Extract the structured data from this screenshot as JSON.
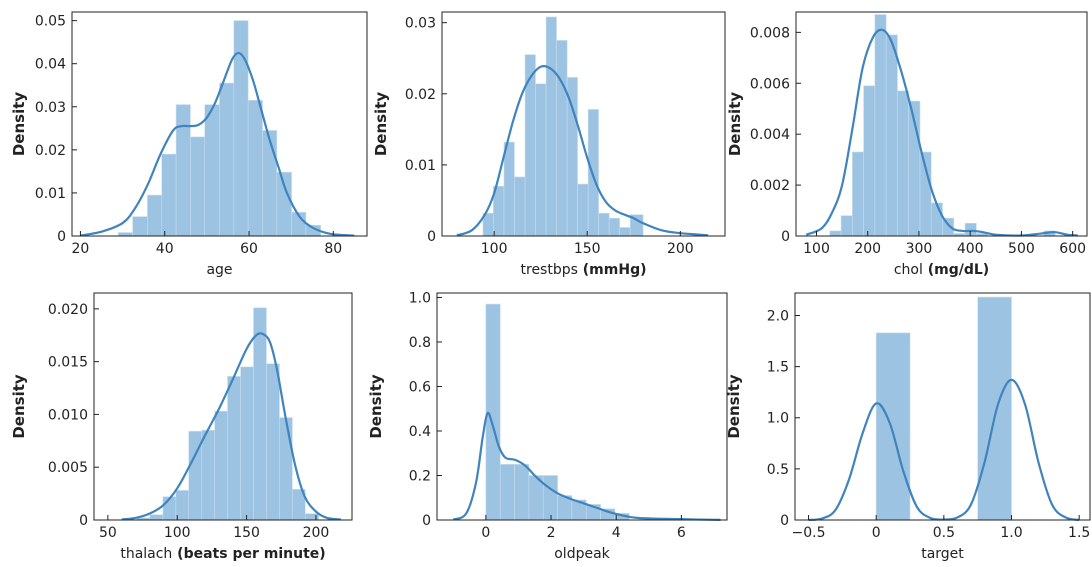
{
  "style": {
    "bar_color": "#9dc3e2",
    "bar_edge": "#c6dcee",
    "kde_color": "#3f84bd",
    "axis_color": "#222222"
  },
  "chart_data": [
    {
      "type": "histogram+kde",
      "xlabel": "age",
      "xlabel_unit": "",
      "ylabel": "Density",
      "xlim": [
        18,
        88
      ],
      "ylim": [
        0,
        0.052
      ],
      "xticks": [
        20,
        40,
        60,
        80
      ],
      "yticks": [
        0,
        0.01,
        0.02,
        0.03,
        0.04,
        0.05
      ],
      "ytick_labels": [
        "0",
        "0.01",
        "0.02",
        "0.03",
        "0.04",
        "0.05"
      ],
      "bins": [
        {
          "x0": 29,
          "x1": 32.4,
          "y": 0.0008
        },
        {
          "x0": 32.4,
          "x1": 35.9,
          "y": 0.0045
        },
        {
          "x0": 35.9,
          "x1": 39.3,
          "y": 0.0095
        },
        {
          "x0": 39.3,
          "x1": 42.7,
          "y": 0.019
        },
        {
          "x0": 42.7,
          "x1": 46.1,
          "y": 0.0305
        },
        {
          "x0": 46.1,
          "x1": 49.5,
          "y": 0.023
        },
        {
          "x0": 49.5,
          "x1": 53.0,
          "y": 0.0305
        },
        {
          "x0": 53.0,
          "x1": 56.4,
          "y": 0.0355
        },
        {
          "x0": 56.4,
          "x1": 59.8,
          "y": 0.05
        },
        {
          "x0": 59.8,
          "x1": 63.2,
          "y": 0.0315
        },
        {
          "x0": 63.2,
          "x1": 66.6,
          "y": 0.0245
        },
        {
          "x0": 66.6,
          "x1": 70.1,
          "y": 0.0148
        },
        {
          "x0": 70.1,
          "x1": 73.5,
          "y": 0.0055
        },
        {
          "x0": 73.5,
          "x1": 77,
          "y": 0.0025
        }
      ],
      "kde": [
        [
          20,
          0.0001
        ],
        [
          25,
          0.001
        ],
        [
          30,
          0.003
        ],
        [
          33,
          0.0065
        ],
        [
          36,
          0.012
        ],
        [
          39,
          0.019
        ],
        [
          42,
          0.0245
        ],
        [
          44,
          0.0255
        ],
        [
          46,
          0.0255
        ],
        [
          48,
          0.0258
        ],
        [
          50,
          0.0275
        ],
        [
          52,
          0.031
        ],
        [
          54,
          0.036
        ],
        [
          56,
          0.041
        ],
        [
          57.5,
          0.0425
        ],
        [
          59,
          0.041
        ],
        [
          61,
          0.036
        ],
        [
          63,
          0.029
        ],
        [
          65,
          0.022
        ],
        [
          67,
          0.016
        ],
        [
          69,
          0.01
        ],
        [
          72,
          0.0045
        ],
        [
          75,
          0.002
        ],
        [
          78,
          0.0008
        ],
        [
          81,
          0.0003
        ],
        [
          85,
          0.0001
        ]
      ]
    },
    {
      "type": "histogram+kde",
      "xlabel": "trestbps",
      "xlabel_unit": "(mmHg)",
      "ylabel": "Density",
      "xlim": [
        72,
        224
      ],
      "ylim": [
        0,
        0.0315
      ],
      "xticks": [
        100,
        150,
        200
      ],
      "yticks": [
        0,
        0.01,
        0.02,
        0.03
      ],
      "ytick_labels": [
        "0",
        "0.01",
        "0.02",
        "0.03"
      ],
      "bins": [
        {
          "x0": 94,
          "x1": 99.6,
          "y": 0.0032
        },
        {
          "x0": 99.6,
          "x1": 105.3,
          "y": 0.007
        },
        {
          "x0": 105.3,
          "x1": 110.9,
          "y": 0.0132
        },
        {
          "x0": 110.9,
          "x1": 116.6,
          "y": 0.0083
        },
        {
          "x0": 116.6,
          "x1": 122.2,
          "y": 0.0255
        },
        {
          "x0": 122.2,
          "x1": 127.9,
          "y": 0.0214
        },
        {
          "x0": 127.9,
          "x1": 133.5,
          "y": 0.0308
        },
        {
          "x0": 133.5,
          "x1": 139.2,
          "y": 0.0275
        },
        {
          "x0": 139.2,
          "x1": 144.8,
          "y": 0.0223
        },
        {
          "x0": 144.8,
          "x1": 150.5,
          "y": 0.0073
        },
        {
          "x0": 150.5,
          "x1": 156.1,
          "y": 0.0178
        },
        {
          "x0": 156.1,
          "x1": 161.8,
          "y": 0.0032
        },
        {
          "x0": 161.8,
          "x1": 167.4,
          "y": 0.0025
        },
        {
          "x0": 167.4,
          "x1": 173.1,
          "y": 0.0012
        },
        {
          "x0": 173.1,
          "x1": 180,
          "y": 0.003
        }
      ],
      "kde": [
        [
          80,
          0.0001
        ],
        [
          88,
          0.0008
        ],
        [
          95,
          0.003
        ],
        [
          100,
          0.006
        ],
        [
          105,
          0.011
        ],
        [
          110,
          0.016
        ],
        [
          115,
          0.02
        ],
        [
          120,
          0.0225
        ],
        [
          125,
          0.0238
        ],
        [
          130,
          0.0236
        ],
        [
          135,
          0.0222
        ],
        [
          140,
          0.0195
        ],
        [
          145,
          0.0155
        ],
        [
          150,
          0.011
        ],
        [
          155,
          0.0072
        ],
        [
          160,
          0.0048
        ],
        [
          165,
          0.0036
        ],
        [
          170,
          0.003
        ],
        [
          175,
          0.0025
        ],
        [
          180,
          0.0018
        ],
        [
          190,
          0.0008
        ],
        [
          200,
          0.0004
        ],
        [
          210,
          0.0002
        ],
        [
          215,
          0.0001
        ]
      ]
    },
    {
      "type": "histogram+kde",
      "xlabel": "chol",
      "xlabel_unit": "(mg/dL)",
      "ylabel": "Density",
      "xlim": [
        60,
        628
      ],
      "ylim": [
        0,
        0.0088
      ],
      "xticks": [
        100,
        200,
        300,
        400,
        500,
        600
      ],
      "yticks": [
        0,
        0.002,
        0.004,
        0.006,
        0.008
      ],
      "ytick_labels": [
        "0",
        "0.002",
        "0.004",
        "0.006",
        "0.008"
      ],
      "bins": [
        {
          "x0": 126,
          "x1": 148,
          "y": 0.0002
        },
        {
          "x0": 148,
          "x1": 170,
          "y": 0.0008
        },
        {
          "x0": 170,
          "x1": 192,
          "y": 0.0033
        },
        {
          "x0": 192,
          "x1": 214,
          "y": 0.0059
        },
        {
          "x0": 214,
          "x1": 236,
          "y": 0.0087
        },
        {
          "x0": 236,
          "x1": 258,
          "y": 0.0079
        },
        {
          "x0": 258,
          "x1": 280,
          "y": 0.0057
        },
        {
          "x0": 280,
          "x1": 302,
          "y": 0.0053
        },
        {
          "x0": 302,
          "x1": 324,
          "y": 0.0033
        },
        {
          "x0": 324,
          "x1": 346,
          "y": 0.0013
        },
        {
          "x0": 346,
          "x1": 368,
          "y": 0.0007
        },
        {
          "x0": 368,
          "x1": 390,
          "y": 0.0001
        },
        {
          "x0": 390,
          "x1": 412,
          "y": 0.0005
        },
        {
          "x0": 412,
          "x1": 434,
          "y": 0.0001
        },
        {
          "x0": 544,
          "x1": 566,
          "y": 0.0002
        }
      ],
      "kde": [
        [
          80,
          5e-05
        ],
        [
          110,
          0.0003
        ],
        [
          130,
          0.0009
        ],
        [
          150,
          0.002
        ],
        [
          170,
          0.0042
        ],
        [
          190,
          0.0066
        ],
        [
          210,
          0.0078
        ],
        [
          228,
          0.0081
        ],
        [
          245,
          0.0077
        ],
        [
          265,
          0.0065
        ],
        [
          285,
          0.005
        ],
        [
          305,
          0.0033
        ],
        [
          325,
          0.0018
        ],
        [
          345,
          0.0008
        ],
        [
          365,
          0.0003
        ],
        [
          385,
          0.0002
        ],
        [
          405,
          0.0002
        ],
        [
          425,
          0.00015
        ],
        [
          450,
          5e-05
        ],
        [
          500,
          2e-05
        ],
        [
          540,
          0.0001
        ],
        [
          565,
          0.00015
        ],
        [
          590,
          5e-05
        ],
        [
          610,
          2e-05
        ]
      ]
    },
    {
      "type": "histogram+kde",
      "xlabel": "thalach",
      "xlabel_unit": "(beats per minute)",
      "ylabel": "Density",
      "xlim": [
        40,
        226
      ],
      "ylim": [
        0,
        0.0215
      ],
      "xticks": [
        50,
        100,
        150,
        200
      ],
      "yticks": [
        0,
        0.005,
        0.01,
        0.015,
        0.02
      ],
      "ytick_labels": [
        "0",
        "0.005",
        "0.010",
        "0.015",
        "0.020"
      ],
      "bins": [
        {
          "x0": 71,
          "x1": 80.3,
          "y": 0.0002
        },
        {
          "x0": 80.3,
          "x1": 89.7,
          "y": 0.0005
        },
        {
          "x0": 89.7,
          "x1": 99,
          "y": 0.0022
        },
        {
          "x0": 99,
          "x1": 108.3,
          "y": 0.0028
        },
        {
          "x0": 108.3,
          "x1": 117.7,
          "y": 0.0084
        },
        {
          "x0": 117.7,
          "x1": 127,
          "y": 0.0085
        },
        {
          "x0": 127,
          "x1": 136.3,
          "y": 0.0103
        },
        {
          "x0": 136.3,
          "x1": 145.7,
          "y": 0.0136
        },
        {
          "x0": 145.7,
          "x1": 155,
          "y": 0.0145
        },
        {
          "x0": 155,
          "x1": 164.3,
          "y": 0.0201
        },
        {
          "x0": 164.3,
          "x1": 173.7,
          "y": 0.0148
        },
        {
          "x0": 173.7,
          "x1": 183,
          "y": 0.0097
        },
        {
          "x0": 183,
          "x1": 192.3,
          "y": 0.0029
        },
        {
          "x0": 192.3,
          "x1": 202,
          "y": 0.0006
        }
      ],
      "kde": [
        [
          60,
          5e-05
        ],
        [
          70,
          0.0002
        ],
        [
          80,
          0.0006
        ],
        [
          90,
          0.0014
        ],
        [
          100,
          0.003
        ],
        [
          110,
          0.0054
        ],
        [
          120,
          0.008
        ],
        [
          130,
          0.0105
        ],
        [
          140,
          0.0133
        ],
        [
          150,
          0.0162
        ],
        [
          157,
          0.0175
        ],
        [
          162,
          0.0176
        ],
        [
          167,
          0.0168
        ],
        [
          172,
          0.0142
        ],
        [
          178,
          0.0098
        ],
        [
          185,
          0.0052
        ],
        [
          192,
          0.0022
        ],
        [
          200,
          0.0008
        ],
        [
          208,
          0.0002
        ],
        [
          218,
          5e-05
        ]
      ]
    },
    {
      "type": "histogram+kde",
      "xlabel": "oldpeak",
      "xlabel_unit": "",
      "ylabel": "Density",
      "xlim": [
        -1.5,
        7.4
      ],
      "ylim": [
        0,
        1.02
      ],
      "xticks": [
        0,
        2,
        4,
        6
      ],
      "yticks": [
        0,
        0.2,
        0.4,
        0.6,
        0.8,
        1.0
      ],
      "ytick_labels": [
        "0",
        "0.2",
        "0.4",
        "0.6",
        "0.8",
        "1.0"
      ],
      "bins": [
        {
          "x0": 0,
          "x1": 0.44,
          "y": 0.97
        },
        {
          "x0": 0.44,
          "x1": 0.88,
          "y": 0.25
        },
        {
          "x0": 0.88,
          "x1": 1.32,
          "y": 0.25
        },
        {
          "x0": 1.32,
          "x1": 1.76,
          "y": 0.2
        },
        {
          "x0": 1.76,
          "x1": 2.2,
          "y": 0.2
        },
        {
          "x0": 2.2,
          "x1": 2.64,
          "y": 0.11
        },
        {
          "x0": 2.64,
          "x1": 3.08,
          "y": 0.09
        },
        {
          "x0": 3.08,
          "x1": 3.52,
          "y": 0.07
        },
        {
          "x0": 3.52,
          "x1": 3.96,
          "y": 0.05
        },
        {
          "x0": 3.96,
          "x1": 4.4,
          "y": 0.03
        }
      ],
      "kde": [
        [
          -1,
          0.002
        ],
        [
          -0.6,
          0.03
        ],
        [
          -0.3,
          0.17
        ],
        [
          -0.1,
          0.37
        ],
        [
          0.05,
          0.48
        ],
        [
          0.2,
          0.43
        ],
        [
          0.4,
          0.33
        ],
        [
          0.6,
          0.28
        ],
        [
          0.9,
          0.27
        ],
        [
          1.2,
          0.245
        ],
        [
          1.5,
          0.2
        ],
        [
          1.8,
          0.16
        ],
        [
          2.2,
          0.12
        ],
        [
          2.6,
          0.095
        ],
        [
          3,
          0.075
        ],
        [
          3.4,
          0.055
        ],
        [
          3.8,
          0.035
        ],
        [
          4.2,
          0.02
        ],
        [
          4.6,
          0.01
        ],
        [
          5.2,
          0.006
        ],
        [
          6,
          0.004
        ],
        [
          6.6,
          0.002
        ],
        [
          7.2,
          0.0005
        ]
      ]
    },
    {
      "type": "histogram+kde",
      "xlabel": "target",
      "xlabel_unit": "",
      "ylabel": "Density",
      "xlim": [
        -0.6,
        1.58
      ],
      "ylim": [
        0,
        2.22
      ],
      "xticks": [
        -0.5,
        0,
        0.5,
        1,
        1.5
      ],
      "xtick_labels": [
        "−0.5",
        "0",
        "0.5",
        "1.0",
        "1.5"
      ],
      "yticks": [
        0,
        0.5,
        1.0,
        1.5,
        2.0
      ],
      "ytick_labels": [
        "0",
        "0.5",
        "1.0",
        "1.5",
        "2.0"
      ],
      "bins": [
        {
          "x0": 0,
          "x1": 0.25,
          "y": 1.83
        },
        {
          "x0": 0.75,
          "x1": 1.0,
          "y": 2.18
        }
      ],
      "kde": [
        [
          -0.5,
          0.0
        ],
        [
          -0.4,
          0.015
        ],
        [
          -0.3,
          0.1
        ],
        [
          -0.2,
          0.4
        ],
        [
          -0.1,
          0.85
        ],
        [
          0,
          1.14
        ],
        [
          0.1,
          0.95
        ],
        [
          0.2,
          0.48
        ],
        [
          0.3,
          0.13
        ],
        [
          0.4,
          0.02
        ],
        [
          0.5,
          0.005
        ],
        [
          0.6,
          0.025
        ],
        [
          0.7,
          0.15
        ],
        [
          0.8,
          0.56
        ],
        [
          0.9,
          1.13
        ],
        [
          1.0,
          1.37
        ],
        [
          1.1,
          1.13
        ],
        [
          1.2,
          0.56
        ],
        [
          1.3,
          0.15
        ],
        [
          1.4,
          0.025
        ],
        [
          1.5,
          0.0
        ]
      ]
    }
  ]
}
